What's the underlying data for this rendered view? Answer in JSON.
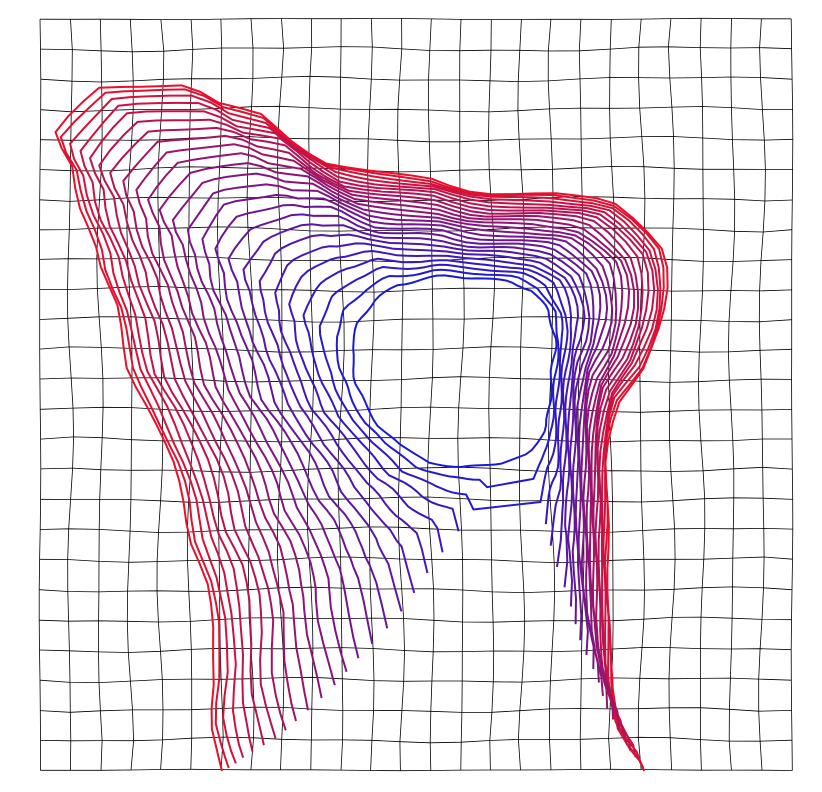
{
  "diagram": {
    "kind": "deformed-grid-with-contour-lines",
    "grid": {
      "columns": 25,
      "rows": 25,
      "line_color": "#000000"
    },
    "contours": {
      "count": 24,
      "color_outer": "#e8102a",
      "color_inner": "#1a1ad6"
    },
    "background_color": "#ffffff"
  }
}
